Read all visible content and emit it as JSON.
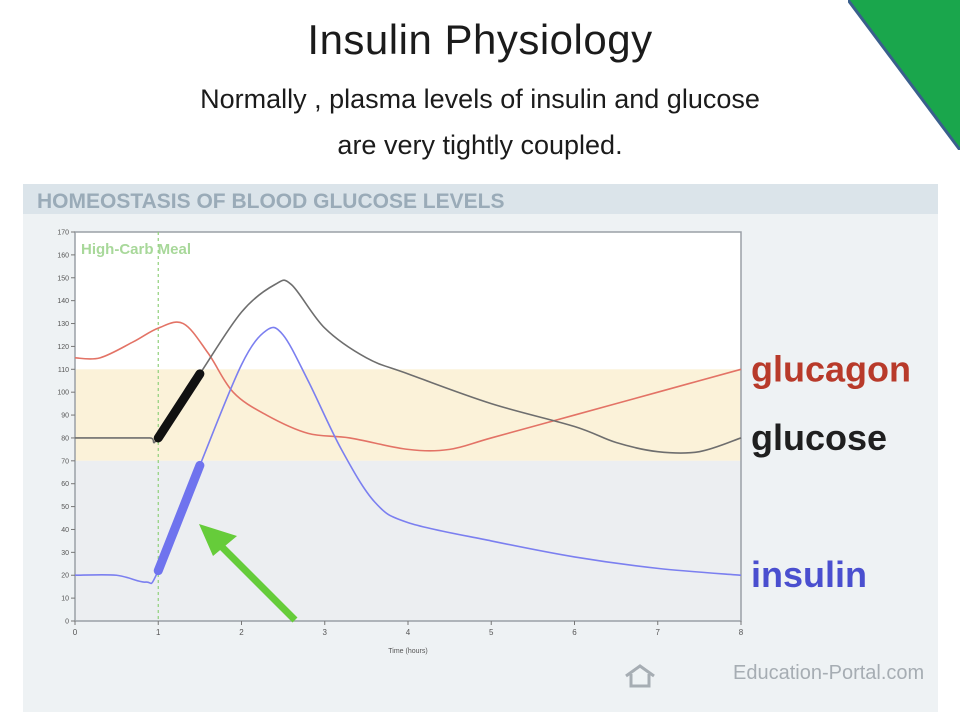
{
  "slide": {
    "title": "Insulin  Physiology",
    "subtitle_line1": "Normally ,  plasma levels of insulin  and glucose",
    "subtitle_line2": "are very tightly coupled."
  },
  "figure": {
    "watermark": "Education-Portal.com"
  },
  "colors": {
    "glucagon": "#e37366",
    "glucose": "#6e6e6e",
    "insulin": "#7b7ff0",
    "insulin_label": "#4a4fcf",
    "glucagon_label": "#b83a2a",
    "normal_band": "#fbf2d9",
    "arrow": "#66cc3a",
    "corner_fill": "#1aa64c",
    "corner_line": "#3a5f8c"
  },
  "icons": {
    "corner": "green-triangle-icon",
    "watermark": "house-logo-icon",
    "arrow": "green-arrow-icon"
  },
  "chart_data": {
    "type": "line",
    "title": "HOMEOSTASIS OF BLOOD GLUCOSE LEVELS",
    "xlabel": "Time (hours)",
    "ylabel": "",
    "xlim": [
      0,
      8
    ],
    "ylim": [
      0,
      170
    ],
    "x_ticks": [
      0,
      1,
      2,
      3,
      4,
      5,
      6,
      7,
      8
    ],
    "y_ticks": [
      0,
      10,
      20,
      30,
      40,
      50,
      60,
      70,
      80,
      90,
      100,
      110,
      120,
      130,
      140,
      150,
      160,
      170
    ],
    "grid": false,
    "legend_position": "right",
    "normal_range": [
      70,
      110
    ],
    "annotation": {
      "text": "High-Carb Meal",
      "x": 1
    },
    "series": [
      {
        "name": "glucagon",
        "color": "#e37366",
        "x": [
          0,
          0.3,
          0.7,
          1.0,
          1.3,
          1.6,
          1.9,
          2.3,
          2.8,
          3.3,
          4.0,
          4.5,
          5.0,
          6.0,
          7.0,
          8.0
        ],
        "y": [
          115,
          115,
          122,
          128,
          130,
          117,
          100,
          90,
          82,
          80,
          75,
          75,
          80,
          90,
          100,
          110
        ]
      },
      {
        "name": "glucose",
        "color": "#6e6e6e",
        "x": [
          0,
          0.5,
          0.9,
          1.0,
          1.5,
          2.0,
          2.4,
          2.6,
          3.0,
          3.5,
          4.0,
          5.0,
          6.0,
          6.5,
          7.0,
          7.5,
          8.0
        ],
        "y": [
          80,
          80,
          80,
          80,
          108,
          135,
          147,
          147,
          128,
          115,
          108,
          95,
          85,
          78,
          74,
          74,
          80
        ]
      },
      {
        "name": "insulin",
        "color": "#7b7ff0",
        "x": [
          0,
          0.5,
          0.85,
          1.0,
          1.5,
          2.0,
          2.3,
          2.5,
          2.8,
          3.2,
          3.6,
          4.0,
          5.0,
          6.0,
          7.0,
          8.0
        ],
        "y": [
          20,
          20,
          17,
          22,
          68,
          112,
          127,
          125,
          105,
          75,
          52,
          43,
          35,
          28,
          23,
          20
        ]
      }
    ],
    "highlight_segments": [
      {
        "series": "glucose",
        "x": [
          1.0,
          1.5
        ],
        "color": "#111111"
      },
      {
        "series": "insulin",
        "x": [
          1.0,
          1.5
        ],
        "color": "#6f73ee"
      }
    ]
  }
}
